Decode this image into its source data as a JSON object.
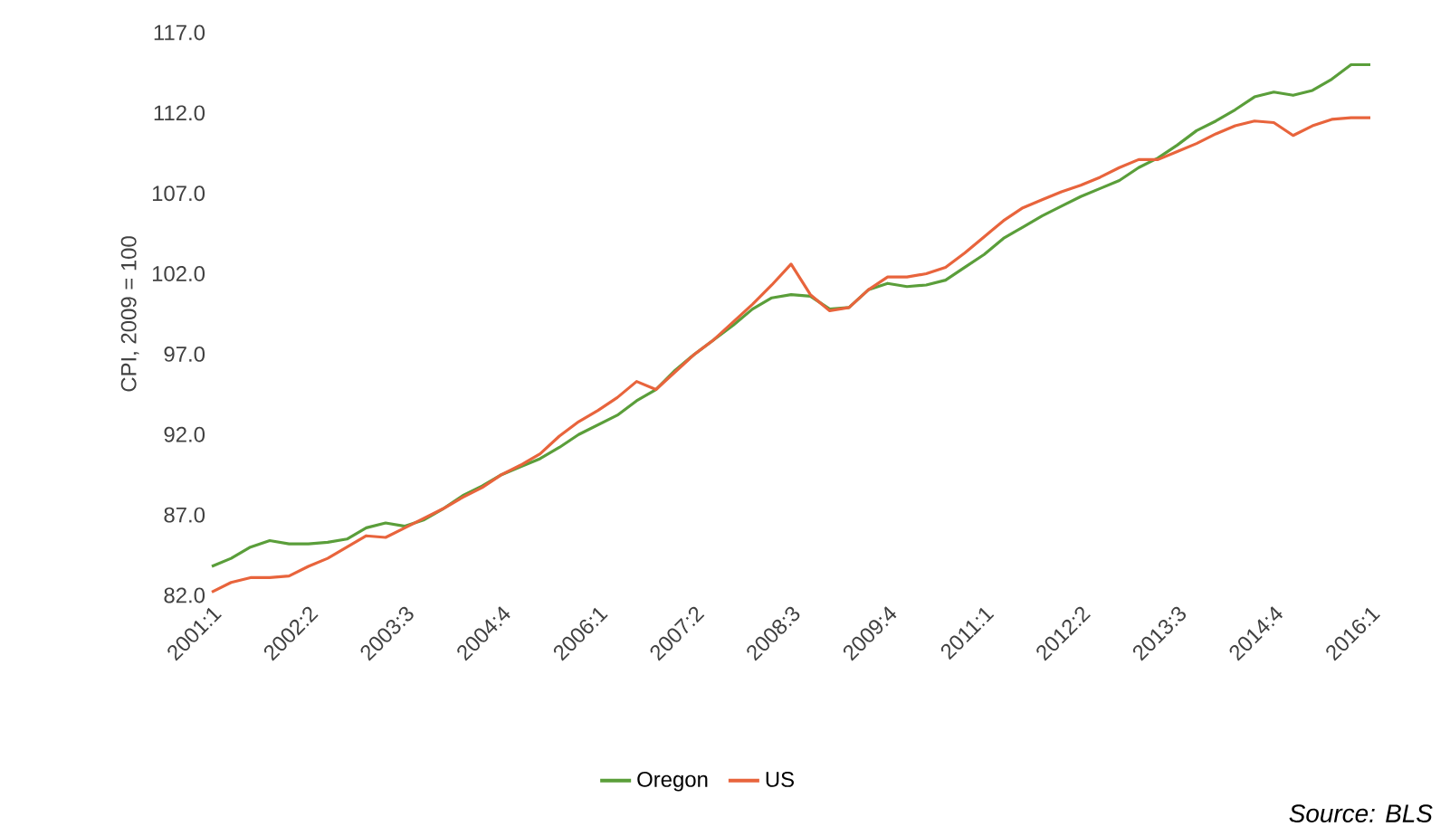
{
  "chart_data": {
    "type": "line",
    "ylabel": "CPI, 2009 = 100",
    "categories": [
      "2001:1",
      null,
      null,
      null,
      null,
      "2002:2",
      null,
      null,
      null,
      null,
      "2003:3",
      null,
      null,
      null,
      null,
      "2004:4",
      null,
      null,
      null,
      null,
      "2006:1",
      null,
      null,
      null,
      null,
      "2007:2",
      null,
      null,
      null,
      null,
      "2008:3",
      null,
      null,
      null,
      null,
      "2009:4",
      null,
      null,
      null,
      null,
      "2011:1",
      null,
      null,
      null,
      null,
      "2012:2",
      null,
      null,
      null,
      null,
      "2013:3",
      null,
      null,
      null,
      null,
      "2014:4",
      null,
      null,
      null,
      null,
      "2016:1"
    ],
    "series": [
      {
        "name": "Oregon",
        "color": "#5a9e3a",
        "values": [
          83.8,
          84.3,
          85.0,
          85.4,
          85.2,
          85.2,
          85.3,
          85.5,
          86.2,
          86.5,
          86.3,
          86.7,
          87.4,
          88.2,
          88.8,
          89.5,
          90.0,
          90.5,
          91.2,
          92.0,
          92.6,
          93.2,
          94.1,
          94.8,
          96.0,
          97.0,
          97.9,
          98.8,
          99.8,
          100.5,
          100.7,
          100.6,
          99.8,
          99.9,
          101.0,
          101.4,
          101.2,
          101.3,
          101.6,
          102.4,
          103.2,
          104.2,
          104.9,
          105.6,
          106.2,
          106.8,
          107.3,
          107.8,
          108.6,
          109.2,
          110.0,
          110.9,
          111.5,
          112.2,
          113.0,
          113.3,
          113.1,
          113.4,
          114.1,
          115.0,
          115.0
        ]
      },
      {
        "name": "US",
        "color": "#e8643c",
        "values": [
          82.2,
          82.8,
          83.1,
          83.1,
          83.2,
          83.8,
          84.3,
          85.0,
          85.7,
          85.6,
          86.2,
          86.8,
          87.4,
          88.1,
          88.7,
          89.5,
          90.1,
          90.8,
          91.9,
          92.8,
          93.5,
          94.3,
          95.3,
          94.8,
          95.9,
          97.0,
          97.9,
          99.0,
          100.1,
          101.3,
          102.6,
          100.7,
          99.7,
          99.9,
          101.0,
          101.8,
          101.8,
          102.0,
          102.4,
          103.3,
          104.3,
          105.3,
          106.1,
          106.6,
          107.1,
          107.5,
          108.0,
          108.6,
          109.1,
          109.1,
          109.6,
          110.1,
          110.7,
          111.2,
          111.5,
          111.4,
          110.6,
          111.2,
          111.6,
          111.7,
          111.7
        ]
      }
    ],
    "ylim": [
      82,
      117
    ],
    "yticks": [
      {
        "value": 82,
        "label": "82.0"
      },
      {
        "value": 87,
        "label": "87.0"
      },
      {
        "value": 92,
        "label": "92.0"
      },
      {
        "value": 97,
        "label": "97.0"
      },
      {
        "value": 102,
        "label": "102.0"
      },
      {
        "value": 107,
        "label": "107.0"
      },
      {
        "value": 112,
        "label": "112.0"
      },
      {
        "value": 117,
        "label": "117.0"
      }
    ],
    "grid": false,
    "legend": "bottom",
    "marker": "none",
    "line_style": "solid",
    "annotations": [
      "Source: BLS"
    ]
  }
}
